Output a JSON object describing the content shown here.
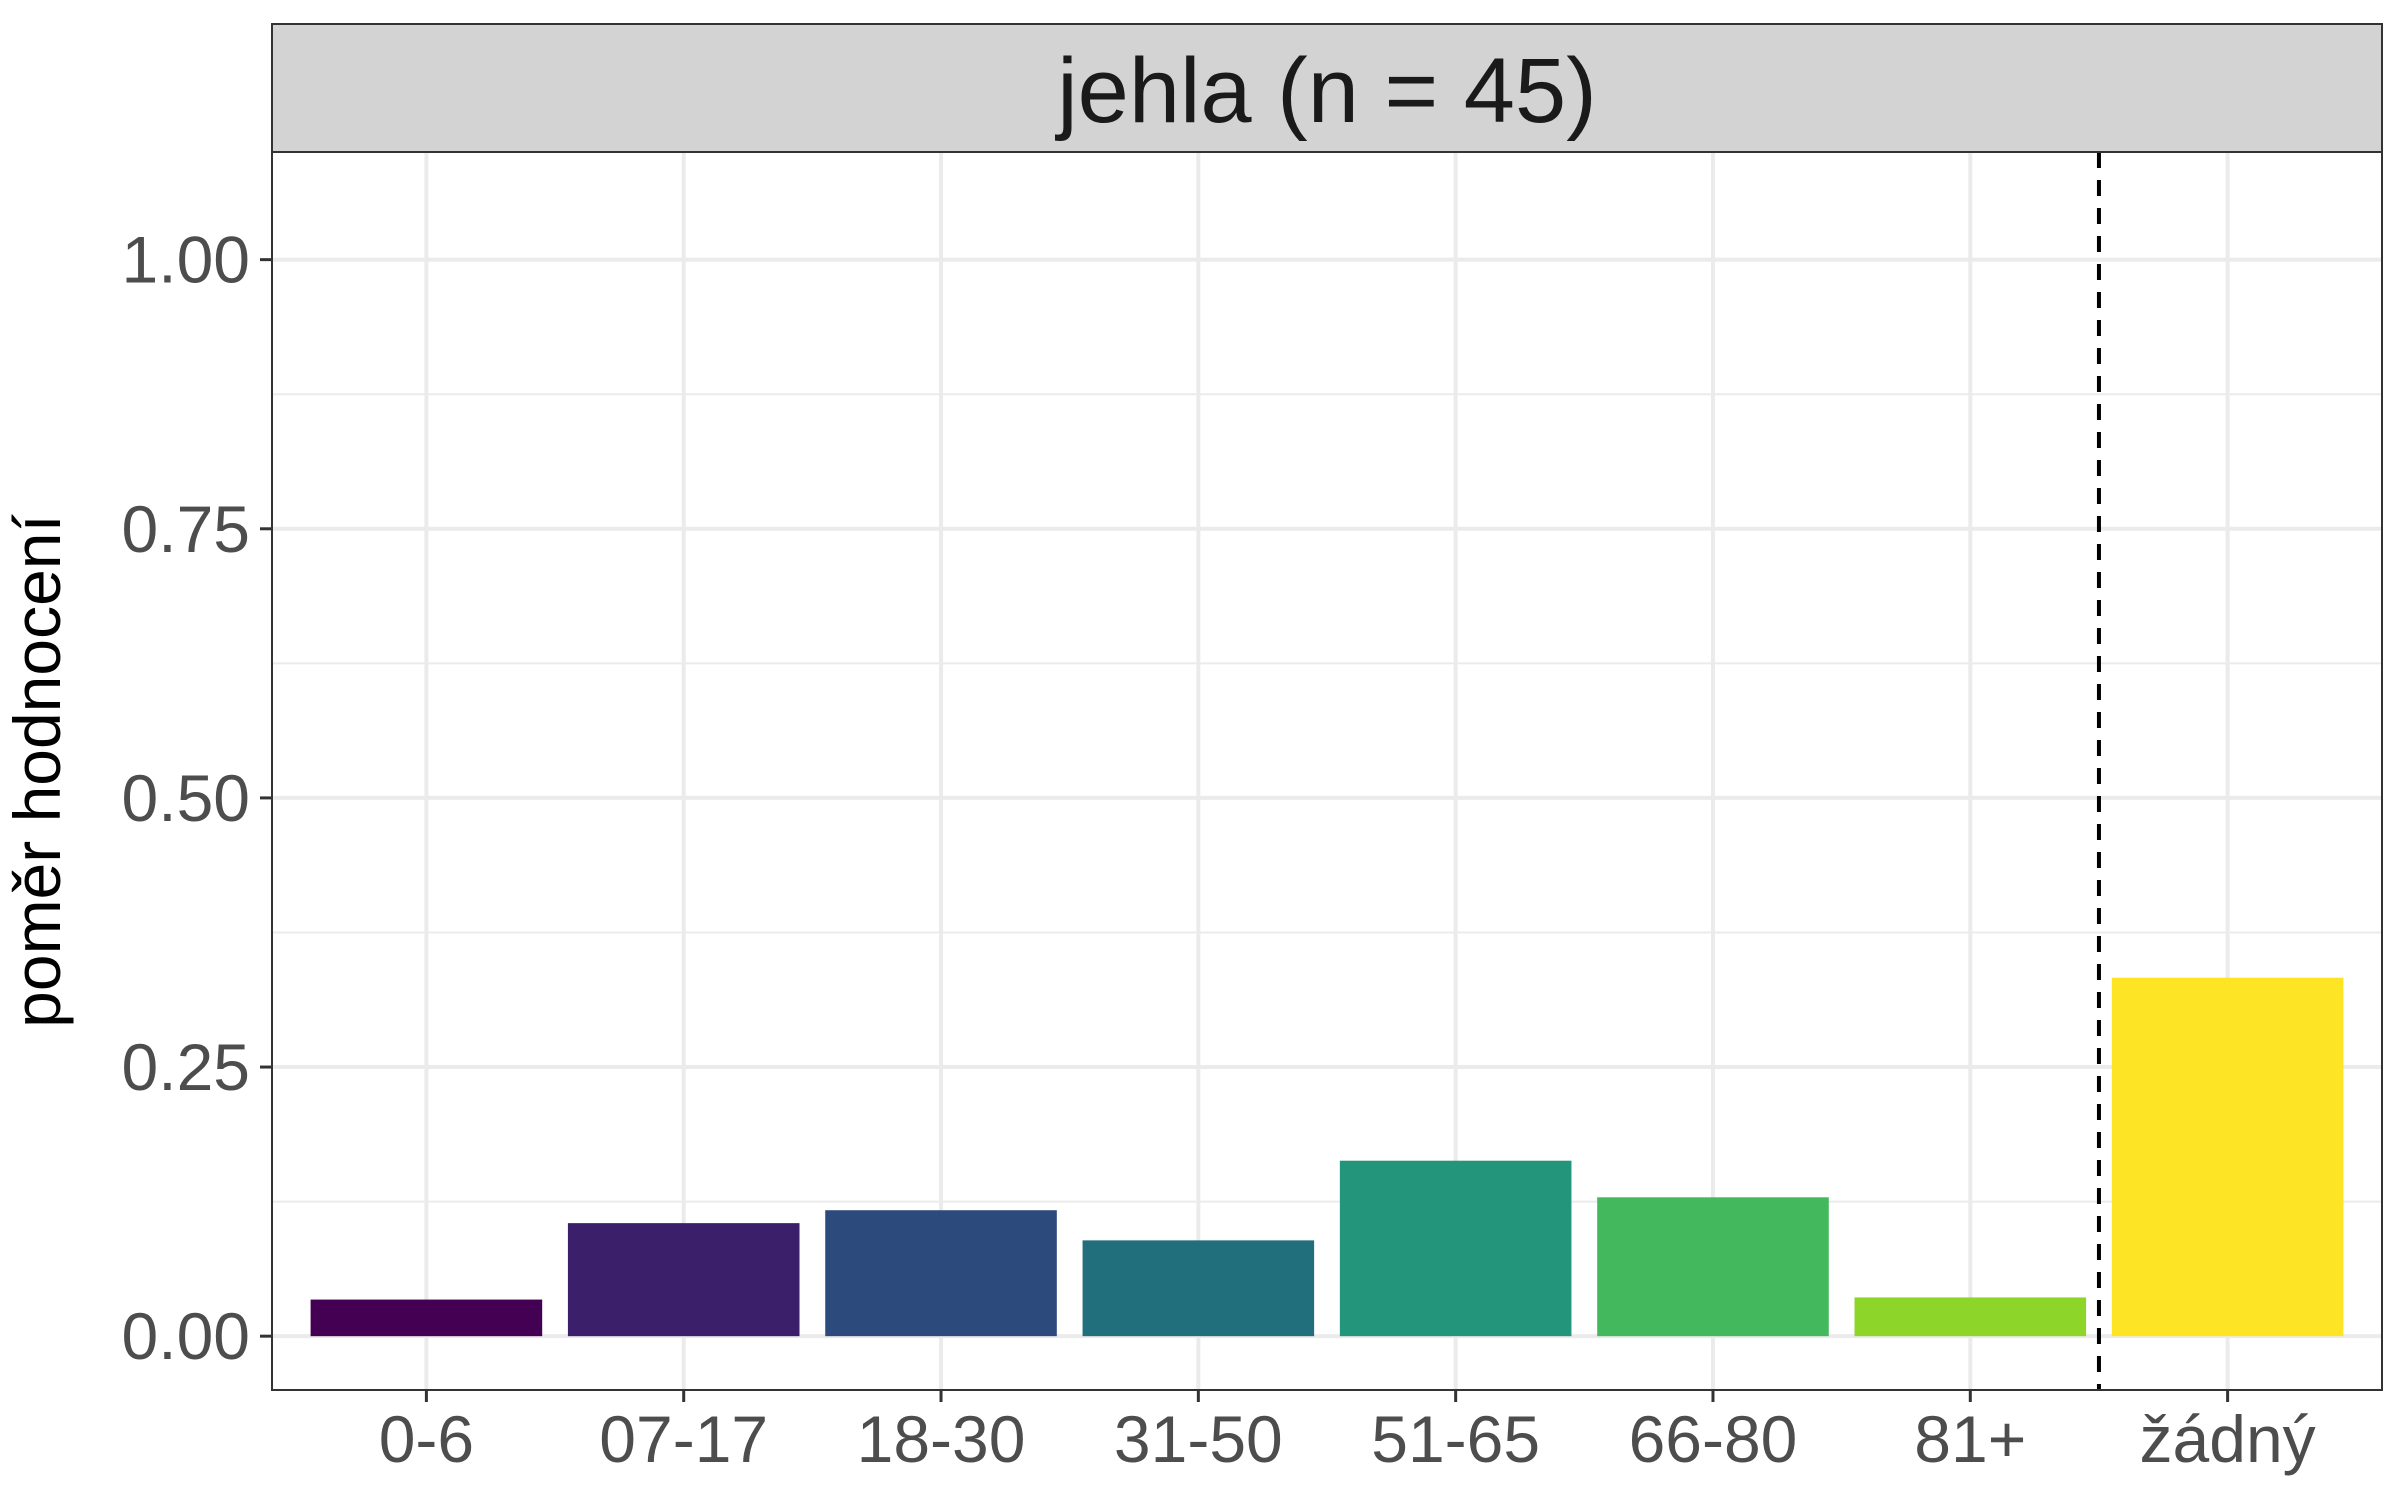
{
  "chart_data": {
    "type": "bar",
    "title": "jehla (n = 45)",
    "xlabel": "",
    "ylabel": "poměr hodnocení",
    "categories": [
      "0-6",
      "07-17",
      "18-30",
      "31-50",
      "51-65",
      "66-80",
      "81+",
      "žádný"
    ],
    "values": [
      0.034,
      0.105,
      0.117,
      0.089,
      0.163,
      0.129,
      0.036,
      0.333
    ],
    "colors": [
      "#440154",
      "#3B1F6A",
      "#2C4A7C",
      "#216F7D",
      "#22957A",
      "#43B85C",
      "#8ED52A",
      "#FDE425"
    ],
    "ylim": [
      -0.05,
      1.1
    ],
    "yticks": [
      0.0,
      0.25,
      0.5,
      0.75,
      1.0
    ],
    "ytick_labels": [
      "0.00",
      "0.25",
      "0.50",
      "0.75",
      "1.00"
    ],
    "reference_line": {
      "style": "dashed",
      "between": [
        "81+",
        "žádný"
      ]
    },
    "grid": true,
    "legend": "none"
  }
}
